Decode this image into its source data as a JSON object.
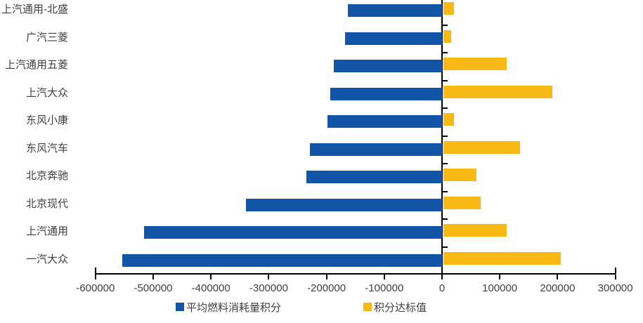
{
  "chart_data": {
    "type": "bar",
    "orientation": "horizontal",
    "title": "",
    "categories": [
      "上汽通用-北盛",
      "广汽三菱",
      "上汽通用五菱",
      "上汽大众",
      "东风小康",
      "东风汽车",
      "北京奔驰",
      "北京现代",
      "上汽通用",
      "一汽大众"
    ],
    "series": [
      {
        "name": "平均燃料消耗量积分",
        "color": "#1254A5",
        "values": [
          -163000,
          -168000,
          -187000,
          -193000,
          -198000,
          -229000,
          -235000,
          -340000,
          -516000,
          -553000
        ]
      },
      {
        "name": "积分达标值",
        "color": "#F9B915",
        "values": [
          18000,
          13000,
          110000,
          189000,
          18000,
          132000,
          57000,
          65000,
          110000,
          203000
        ]
      }
    ],
    "xlabel": "",
    "ylabel": "",
    "x_axis": {
      "min": -600000,
      "max": 300000,
      "tick_step": 100000,
      "tick_labels": [
        "-600000",
        "-500000",
        "-400000",
        "-300000",
        "-200000",
        "-100000",
        "0",
        "100000",
        "200000",
        "300000"
      ]
    },
    "grid": false,
    "legend_position": "bottom"
  },
  "colors": {
    "axis": "#000000",
    "text": "#3f3f3f",
    "background": "#FFFFFF"
  }
}
